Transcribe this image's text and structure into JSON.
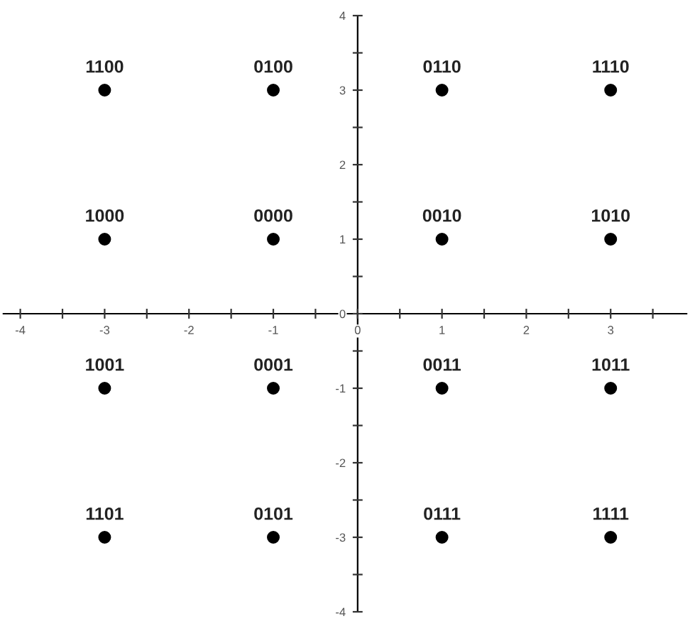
{
  "chart_data": {
    "type": "scatter",
    "color": "#000000",
    "marker": "circle",
    "grid": false,
    "legend": false,
    "x": [
      -3,
      -1,
      1,
      3,
      -3,
      -1,
      1,
      3,
      -3,
      -1,
      1,
      3,
      -3,
      -1,
      1,
      3
    ],
    "values": [
      3,
      3,
      3,
      3,
      1,
      1,
      1,
      1,
      -1,
      -1,
      -1,
      -1,
      -3,
      -3,
      -3,
      -3
    ],
    "xlim": [
      -4.2,
      3.9
    ],
    "ylim": [
      -4,
      4
    ],
    "xticks": [
      -4,
      {
        "value": -3.5,
        "label": null
      },
      -3,
      {
        "value": -2.5,
        "label": null
      },
      -2,
      {
        "value": -1.5,
        "label": null
      },
      -1,
      {
        "value": -0.5,
        "label": null
      },
      0,
      {
        "value": 0.5,
        "label": null
      },
      1,
      {
        "value": 1.5,
        "label": null
      },
      2,
      {
        "value": 2.5,
        "label": null
      },
      3,
      {
        "value": 3.5,
        "label": null
      }
    ],
    "yticks": [
      -4,
      {
        "value": -3.5,
        "label": null
      },
      -3,
      {
        "value": -2.5,
        "label": null
      },
      -2,
      {
        "value": -1.5,
        "label": null
      },
      -1,
      {
        "value": -0.5,
        "label": null
      },
      0,
      {
        "value": 0.5,
        "label": null
      },
      1,
      {
        "value": 1.5,
        "label": null
      },
      2,
      {
        "value": 2.5,
        "label": null
      },
      3,
      {
        "value": 3.5,
        "label": null
      },
      4
    ],
    "annotations": [
      {
        "text": "1100",
        "x": -3,
        "y": 3
      },
      {
        "text": "0100",
        "x": -1,
        "y": 3
      },
      {
        "text": "0110",
        "x": 1,
        "y": 3
      },
      {
        "text": "1110",
        "x": 3,
        "y": 3
      },
      {
        "text": "1000",
        "x": -3,
        "y": 1
      },
      {
        "text": "0000",
        "x": -1,
        "y": 1
      },
      {
        "text": "0010",
        "x": 1,
        "y": 1
      },
      {
        "text": "1010",
        "x": 3,
        "y": 1
      },
      {
        "text": "1001",
        "x": -3,
        "y": -1
      },
      {
        "text": "0001",
        "x": -1,
        "y": -1
      },
      {
        "text": "0011",
        "x": 1,
        "y": -1
      },
      {
        "text": "1011",
        "x": 3,
        "y": -1
      },
      {
        "text": "1101",
        "x": -3,
        "y": -3
      },
      {
        "text": "0101",
        "x": -1,
        "y": -3
      },
      {
        "text": "0111",
        "x": 1,
        "y": -3
      },
      {
        "text": "1111",
        "x": 3,
        "y": -3
      }
    ]
  }
}
